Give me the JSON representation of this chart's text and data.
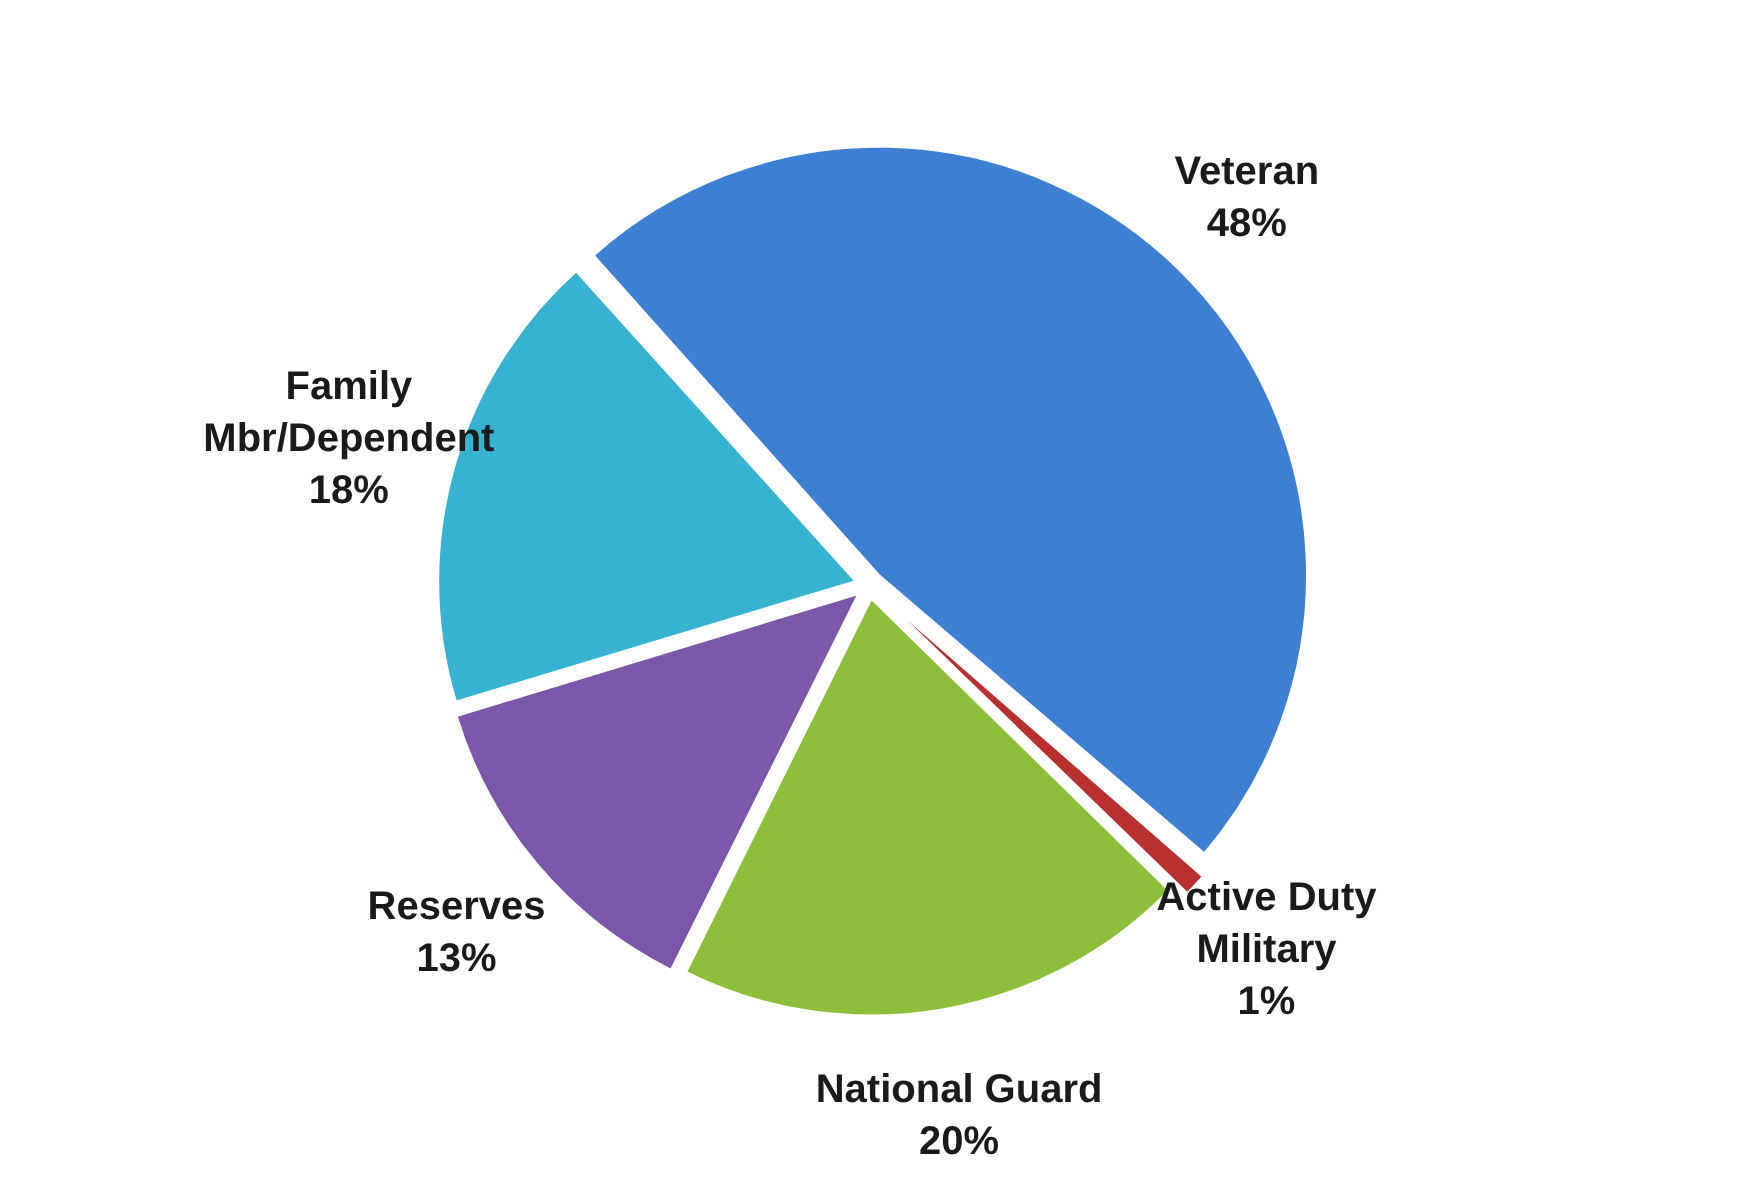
{
  "chart_data": {
    "type": "pie",
    "categories": [
      "Veteran",
      "Active Duty Military",
      "National Guard",
      "Reserves",
      "Family Mbr/Dependent"
    ],
    "values": [
      48,
      1,
      20,
      13,
      18
    ],
    "colors": [
      "#3d7fd3",
      "#b8312f",
      "#8dbf3b",
      "#7b56a9",
      "#35b3d1"
    ],
    "value_labels": [
      "48%",
      "1%",
      "20%",
      "13%",
      "18%"
    ],
    "legend": false
  }
}
